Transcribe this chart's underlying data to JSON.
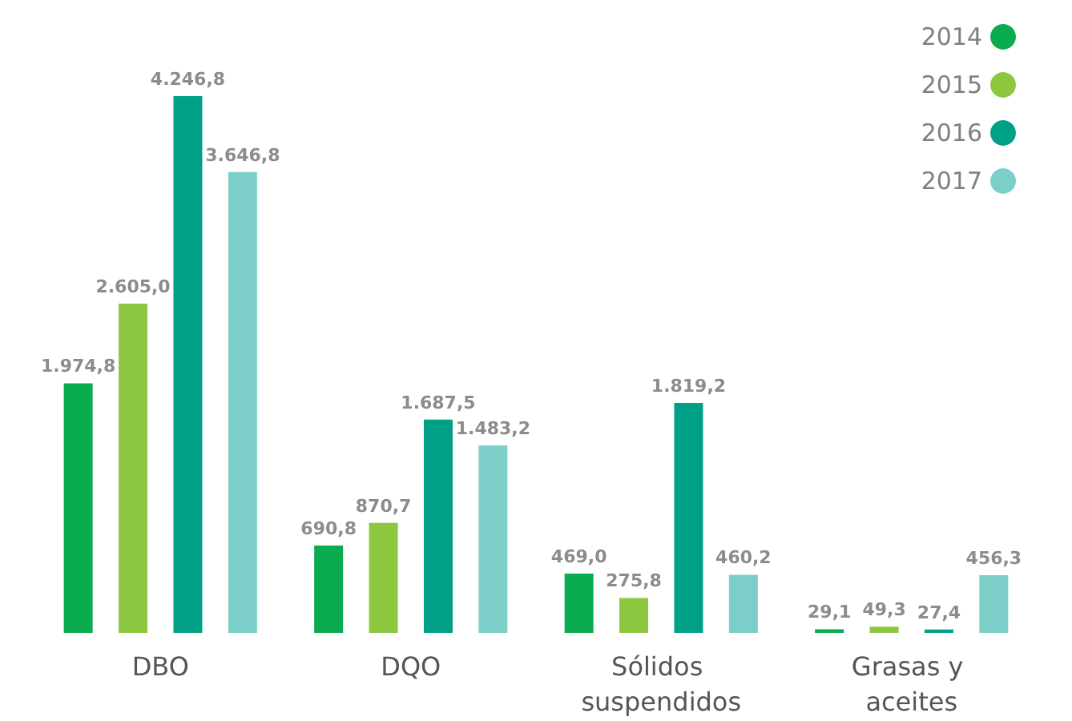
{
  "chart_data": {
    "type": "bar",
    "categories": [
      "DBO",
      "DQO",
      "Sólidos suspendidos",
      "Grasas y aceites"
    ],
    "series": [
      {
        "name": "2014",
        "color": "#0bab4f",
        "values": [
          1974.8,
          690.8,
          469.0,
          29.1
        ],
        "value_labels": [
          "1.974,8",
          "690,8",
          "469,0",
          "29,1"
        ]
      },
      {
        "name": "2015",
        "color": "#8dc63f",
        "values": [
          2605.0,
          870.7,
          275.8,
          49.3
        ],
        "value_labels": [
          "2.605,0",
          "870,7",
          "275,8",
          "49,3"
        ]
      },
      {
        "name": "2016",
        "color": "#00a086",
        "values": [
          4246.8,
          1687.5,
          1819.2,
          27.4
        ],
        "value_labels": [
          "4.246,8",
          "1.687,5",
          "1.819,2",
          "27,4"
        ]
      },
      {
        "name": "2017",
        "color": "#7ccfc8",
        "values": [
          3646.8,
          1483.2,
          460.2,
          456.3
        ],
        "value_labels": [
          "3.646,8",
          "1.483,2",
          "460,2",
          "456,3"
        ]
      }
    ],
    "legend": "top right"
  }
}
